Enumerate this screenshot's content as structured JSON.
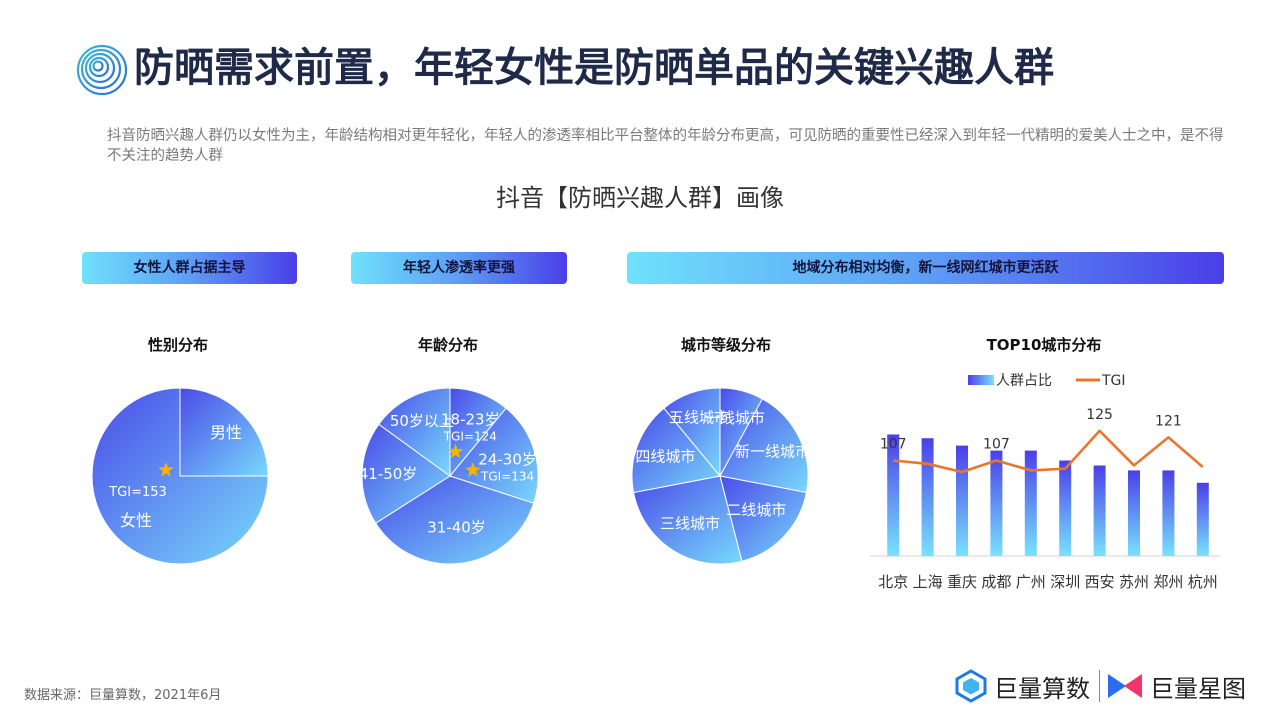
{
  "header": {
    "title": "防晒需求前置，年轻女性是防晒单品的关键兴趣人群",
    "subtitle": "抖音防晒兴趣人群仍以女性为主，年龄结构相对更年轻化，年轻人的渗透率相比平台整体的年龄分布更高，可见防晒的重要性已经深入到年轻一代精明的爱美人士之中，是不得不关注的趋势人群",
    "section_title": "抖音【防晒兴趣人群】画像"
  },
  "banners": {
    "female": "女性人群占据主导",
    "young": "年轻人渗透率更强",
    "region": "地域分布相对均衡，新一线网红城市更活跃"
  },
  "chart_data": [
    {
      "type": "pie",
      "title": "性别分布",
      "slices": [
        {
          "label": "男性",
          "value": 25
        },
        {
          "label": "女性",
          "value": 75,
          "tgi": "TGI=153"
        }
      ],
      "colors": {
        "from": "#4d4be6",
        "to": "#6fd2fb"
      }
    },
    {
      "type": "pie",
      "title": "年龄分布",
      "slices": [
        {
          "label": "18-23岁",
          "value": 11,
          "tgi": "TGI=124"
        },
        {
          "label": "24-30岁",
          "value": 19,
          "tgi": "TGI=134"
        },
        {
          "label": "31-40岁",
          "value": 36
        },
        {
          "label": "41-50岁",
          "value": 19
        },
        {
          "label": "50岁以上",
          "value": 15
        }
      ]
    },
    {
      "type": "pie",
      "title": "城市等级分布",
      "slices": [
        {
          "label": "一线城市",
          "value": 8
        },
        {
          "label": "新一线城市",
          "value": 20
        },
        {
          "label": "二线城市",
          "value": 18
        },
        {
          "label": "三线城市",
          "value": 26
        },
        {
          "label": "四线城市",
          "value": 17
        },
        {
          "label": "五线城市",
          "value": 11
        }
      ]
    },
    {
      "type": "bar",
      "title": "TOP10城市分布",
      "categories": [
        "北京",
        "上海",
        "重庆",
        "成都",
        "广州",
        "深圳",
        "西安",
        "苏州",
        "郑州",
        "杭州"
      ],
      "series": [
        {
          "name": "人群占比",
          "type": "bar",
          "values": [
            9.8,
            9.5,
            8.9,
            8.5,
            8.5,
            7.7,
            7.3,
            6.9,
            6.9,
            5.9
          ]
        },
        {
          "name": "TGI",
          "type": "line",
          "values": [
            107,
            105,
            100,
            107,
            101,
            102,
            125,
            104,
            121,
            103
          ]
        }
      ],
      "line_labels": [
        "107",
        "",
        "",
        "107",
        "",
        "",
        "125",
        "",
        "121",
        ""
      ],
      "line_color": "#e8772e",
      "legend_position": "top"
    }
  ],
  "footer": {
    "source": "数据来源：巨量算数，2021年6月",
    "brand1": "巨量算数",
    "brand2": "巨量星图"
  }
}
